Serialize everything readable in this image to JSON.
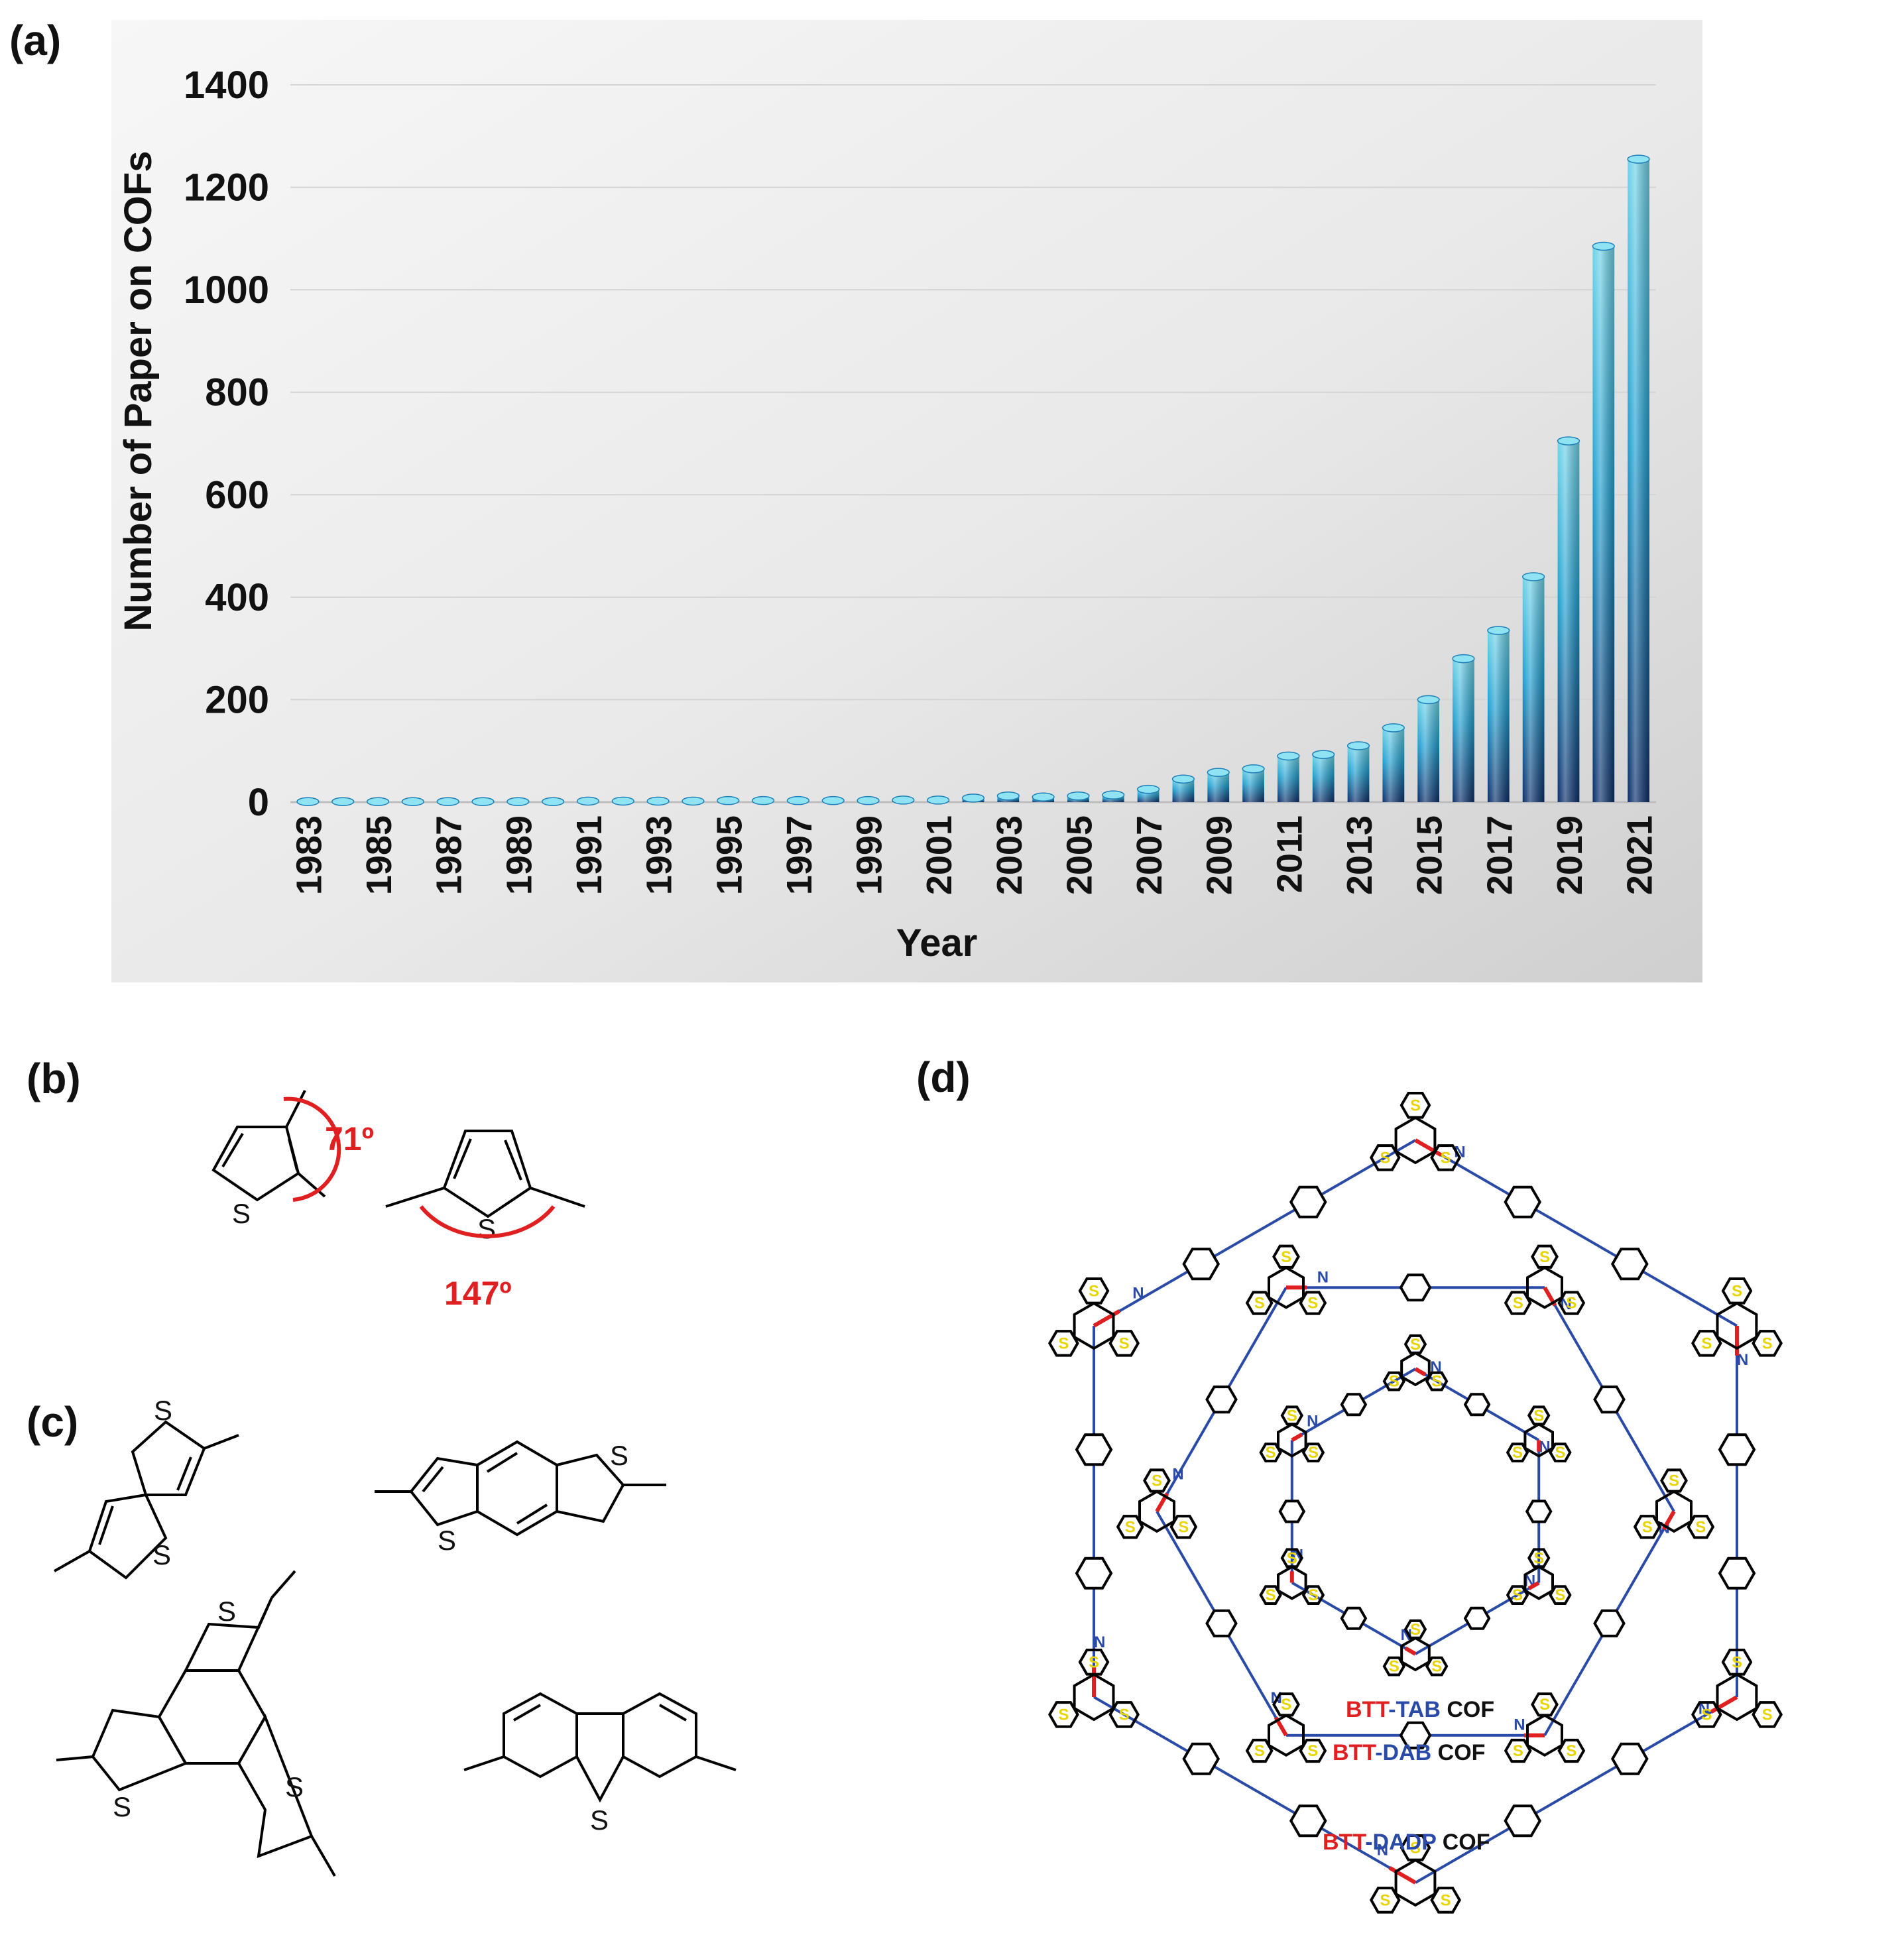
{
  "panels": {
    "a": "(a)",
    "b": "(b)",
    "c": "(c)",
    "d": "(d)"
  },
  "chart_data": {
    "type": "bar",
    "title": "",
    "xlabel": "Year",
    "ylabel": "Number of Paper on COFs",
    "ylim": [
      0,
      1400
    ],
    "yticks": [
      0,
      200,
      400,
      600,
      800,
      1000,
      1200,
      1400
    ],
    "grid": true,
    "categories": [
      "1983",
      "1984",
      "1985",
      "1986",
      "1987",
      "1988",
      "1989",
      "1990",
      "1991",
      "1992",
      "1993",
      "1994",
      "1995",
      "1996",
      "1997",
      "1998",
      "1999",
      "2000",
      "2001",
      "2002",
      "2003",
      "2004",
      "2005",
      "2006",
      "2007",
      "2008",
      "2009",
      "2010",
      "2011",
      "2012",
      "2013",
      "2014",
      "2015",
      "2016",
      "2017",
      "2018",
      "2019",
      "2020",
      "2021"
    ],
    "tick_labels": [
      "1983",
      "1985",
      "1987",
      "1989",
      "1991",
      "1993",
      "1995",
      "1997",
      "1999",
      "2001",
      "2003",
      "2005",
      "2007",
      "2009",
      "2011",
      "2013",
      "2015",
      "2017",
      "2019",
      "2021"
    ],
    "values": [
      1,
      1,
      1,
      1,
      1,
      1,
      1,
      1,
      2,
      2,
      2,
      2,
      3,
      3,
      3,
      3,
      3,
      4,
      4,
      8,
      12,
      10,
      12,
      14,
      25,
      45,
      58,
      65,
      90,
      93,
      110,
      145,
      200,
      280,
      335,
      440,
      705,
      1085,
      1255
    ]
  },
  "panel_b": {
    "angle_small": "71º",
    "angle_large": "147º",
    "atom_s": "S"
  },
  "panel_c": {
    "atom_s": "S"
  },
  "panel_d": {
    "atom_s": "S",
    "atom_n": "N",
    "labels": [
      {
        "red": "BTT",
        "blue": "-TAB",
        "black": " COF"
      },
      {
        "red": "BTT",
        "blue": "-DAB",
        "black": " COF"
      },
      {
        "red": "BTT",
        "blue": "-DADP",
        "black": " COF"
      }
    ]
  },
  "colors": {
    "bar_top": "#6fd3e8",
    "bar_mid": "#1f8fc8",
    "bar_bottom": "#0b2f6b",
    "angle_red": "#e02020",
    "imine_blue": "#2a4aa8",
    "sulfur_yellow": "#e8d400"
  }
}
